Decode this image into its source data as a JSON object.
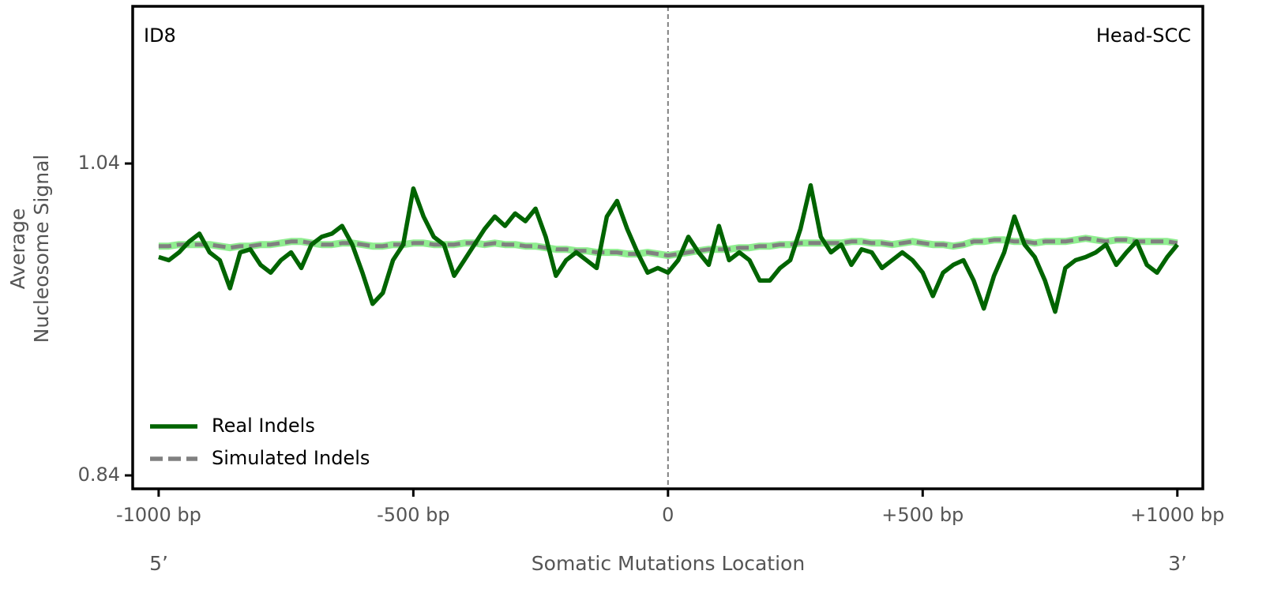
{
  "chart_data": {
    "type": "line",
    "corner_left": "ID8",
    "corner_right": "Head-SCC",
    "ylabel": [
      "Average",
      "Nucleosome Signal"
    ],
    "xlabel": "Somatic Mutations Location",
    "end_left": "5’",
    "end_right": "3’",
    "xlim": [
      -1051,
      1050
    ],
    "ylim": [
      0.8314,
      1.1408
    ],
    "xticks": [
      {
        "value": -1000,
        "label": "-1000 bp"
      },
      {
        "value": -500,
        "label": "-500 bp"
      },
      0,
      {
        "value": 500,
        "label": "+500 bp"
      },
      {
        "value": 1000,
        "label": "+1000 bp"
      }
    ],
    "yticks": [
      0.84,
      1.04
    ],
    "vline": 0,
    "vline_color": "#808080",
    "legend": "lower left",
    "x": [
      -1000,
      -980,
      -960,
      -940,
      -920,
      -900,
      -880,
      -860,
      -840,
      -820,
      -800,
      -780,
      -760,
      -740,
      -720,
      -700,
      -680,
      -660,
      -640,
      -620,
      -600,
      -580,
      -560,
      -540,
      -520,
      -500,
      -480,
      -460,
      -440,
      -420,
      -400,
      -380,
      -360,
      -340,
      -320,
      -300,
      -280,
      -260,
      -240,
      -220,
      -200,
      -180,
      -160,
      -140,
      -120,
      -100,
      -80,
      -60,
      -40,
      -20,
      0,
      20,
      40,
      60,
      80,
      100,
      120,
      140,
      160,
      180,
      200,
      220,
      240,
      260,
      280,
      300,
      320,
      340,
      360,
      380,
      400,
      420,
      440,
      460,
      480,
      500,
      520,
      540,
      560,
      580,
      600,
      620,
      640,
      660,
      680,
      700,
      720,
      740,
      760,
      780,
      800,
      820,
      840,
      860,
      880,
      900,
      920,
      940,
      960,
      980,
      1000
    ],
    "series": [
      {
        "name": "Real Indels",
        "color": "#006400",
        "dashed": false,
        "values": [
          0.98,
          0.978,
          0.983,
          0.99,
          0.995,
          0.983,
          0.978,
          0.96,
          0.983,
          0.985,
          0.975,
          0.97,
          0.978,
          0.983,
          0.973,
          0.988,
          0.993,
          0.995,
          1.0,
          0.988,
          0.97,
          0.95,
          0.957,
          0.978,
          0.988,
          1.024,
          1.006,
          0.993,
          0.988,
          0.968,
          0.978,
          0.988,
          0.998,
          1.006,
          1.0,
          1.008,
          1.003,
          1.011,
          0.993,
          0.968,
          0.978,
          0.983,
          0.978,
          0.973,
          1.006,
          1.016,
          0.998,
          0.983,
          0.97,
          0.973,
          0.97,
          0.978,
          0.993,
          0.983,
          0.975,
          1.0,
          0.978,
          0.983,
          0.978,
          0.965,
          0.965,
          0.973,
          0.978,
          0.998,
          1.026,
          0.993,
          0.983,
          0.988,
          0.975,
          0.985,
          0.983,
          0.973,
          0.978,
          0.983,
          0.978,
          0.97,
          0.955,
          0.97,
          0.975,
          0.978,
          0.965,
          0.947,
          0.968,
          0.983,
          1.006,
          0.988,
          0.98,
          0.965,
          0.945,
          0.973,
          0.978,
          0.98,
          0.983,
          0.988,
          0.975,
          0.983,
          0.99,
          0.975,
          0.97,
          0.98,
          0.988
        ]
      },
      {
        "name": "Simulated Indels",
        "color": "#808080",
        "band_color": "#90ee90",
        "dashed": true,
        "values": [
          0.987,
          0.987,
          0.988,
          0.988,
          0.988,
          0.988,
          0.987,
          0.986,
          0.987,
          0.987,
          0.988,
          0.988,
          0.989,
          0.99,
          0.99,
          0.989,
          0.988,
          0.988,
          0.989,
          0.989,
          0.988,
          0.987,
          0.987,
          0.988,
          0.988,
          0.989,
          0.989,
          0.988,
          0.988,
          0.988,
          0.989,
          0.989,
          0.988,
          0.989,
          0.988,
          0.988,
          0.987,
          0.987,
          0.986,
          0.985,
          0.985,
          0.984,
          0.984,
          0.983,
          0.983,
          0.983,
          0.982,
          0.982,
          0.983,
          0.982,
          0.981,
          0.982,
          0.983,
          0.984,
          0.985,
          0.985,
          0.985,
          0.986,
          0.986,
          0.987,
          0.987,
          0.988,
          0.988,
          0.989,
          0.989,
          0.989,
          0.989,
          0.989,
          0.99,
          0.99,
          0.989,
          0.989,
          0.988,
          0.989,
          0.99,
          0.989,
          0.988,
          0.988,
          0.987,
          0.988,
          0.99,
          0.99,
          0.991,
          0.991,
          0.99,
          0.99,
          0.989,
          0.99,
          0.99,
          0.99,
          0.991,
          0.992,
          0.991,
          0.99,
          0.991,
          0.991,
          0.99,
          0.99,
          0.99,
          0.99,
          0.989
        ]
      }
    ]
  }
}
